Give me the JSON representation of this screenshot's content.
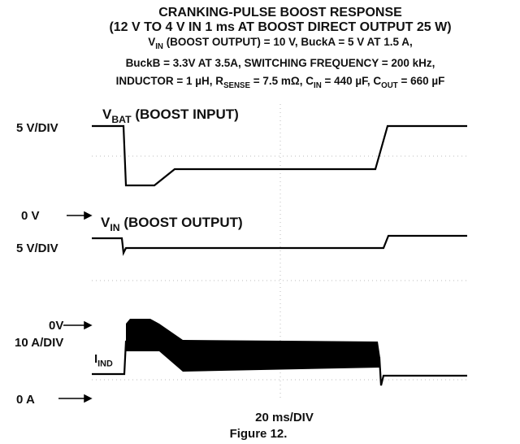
{
  "title": [
    "CRANKING-PULSE BOOST RESPONSE",
    "(12 V TO 4 V IN 1 ms AT BOOST DIRECT OUTPUT 25 W)"
  ],
  "subtitle": [
    [
      {
        "text": "V"
      },
      {
        "sub": "IN"
      },
      {
        "text": " (BOOST OUTPUT) = 10 V, BuckA = 5 V AT 1.5 A,"
      }
    ],
    [
      {
        "text": "BuckB =  3.3V AT 3.5A, SWITCHING FREQUENCY = 200 kHz,"
      }
    ],
    [
      {
        "text": "INDUCTOR = 1 µH, R"
      },
      {
        "sub": "SENSE"
      },
      {
        "text": " = 7.5 mΩ, C"
      },
      {
        "sub": "IN"
      },
      {
        "text": " = 440 µF, C"
      },
      {
        "sub": "OUT"
      },
      {
        "text": " = 660 µF"
      }
    ]
  ],
  "scale_labels": [
    "5 V/DIV",
    "0 V",
    "5 V/DIV",
    "0V",
    "10 A/DIV",
    "0 A"
  ],
  "traces": [
    [
      {
        "text": "V"
      },
      {
        "sub": "BAT"
      },
      {
        "text": " (BOOST INPUT)"
      }
    ],
    [
      {
        "text": "V"
      },
      {
        "sub": "IN"
      },
      {
        "text": " (BOOST OUTPUT)"
      }
    ],
    [
      {
        "text": "I"
      },
      {
        "sub": "IND"
      }
    ]
  ],
  "time_scale": "20 ms/DIV",
  "caption": "Figure 12."
}
